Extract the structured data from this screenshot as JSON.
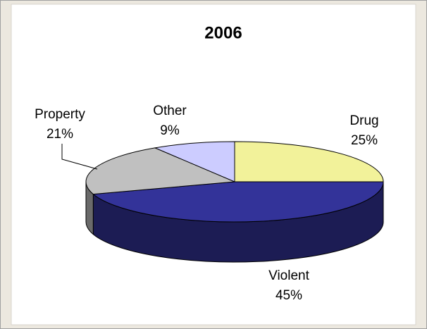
{
  "chart_data": {
    "type": "pie3d",
    "title": "2006",
    "categories": [
      "Drug",
      "Violent",
      "Property",
      "Other"
    ],
    "values": [
      25,
      45,
      21,
      9
    ],
    "value_labels": [
      "25%",
      "45%",
      "21%",
      "9%"
    ],
    "colors": [
      "#f2f29a",
      "#333399",
      "#c0c0c0",
      "#ccccff"
    ]
  }
}
